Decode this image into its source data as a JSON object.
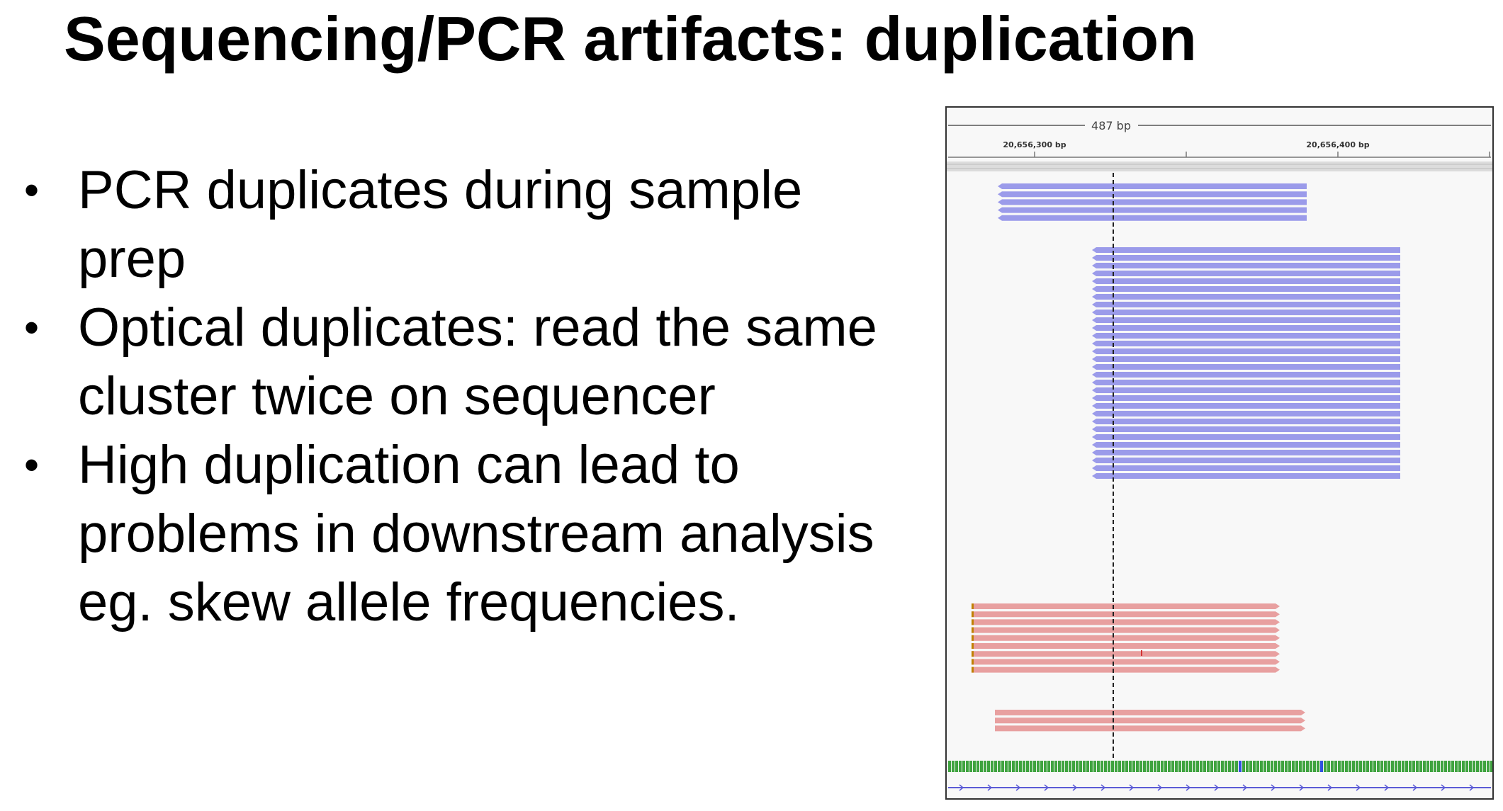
{
  "slide": {
    "title": "Sequencing/PCR artifacts: duplication",
    "bullets": [
      {
        "marker": "•",
        "text": "PCR duplicates during sample prep"
      },
      {
        "marker": "•",
        "text": "Optical duplicates: read the same cluster twice on sequencer"
      },
      {
        "marker": "•",
        "text": "High duplication can lead to problems in downstream analysis eg. skew allele frequencies."
      }
    ]
  },
  "igv": {
    "span_label": "487 bp",
    "tick_labels": [
      "20,656,300 bp",
      "20,656,400 bp"
    ],
    "colors": {
      "forward_read": "#9b9bea",
      "reverse_read": "#e8a0a0",
      "background": "#f8f8f8",
      "mismatch": "#d33333",
      "insertion": "#c08000"
    },
    "read_groups": [
      {
        "strand": "forward",
        "count": 5
      },
      {
        "strand": "forward",
        "count": 30
      },
      {
        "strand": "reverse",
        "count": 9
      },
      {
        "strand": "reverse",
        "count": 3
      }
    ]
  }
}
